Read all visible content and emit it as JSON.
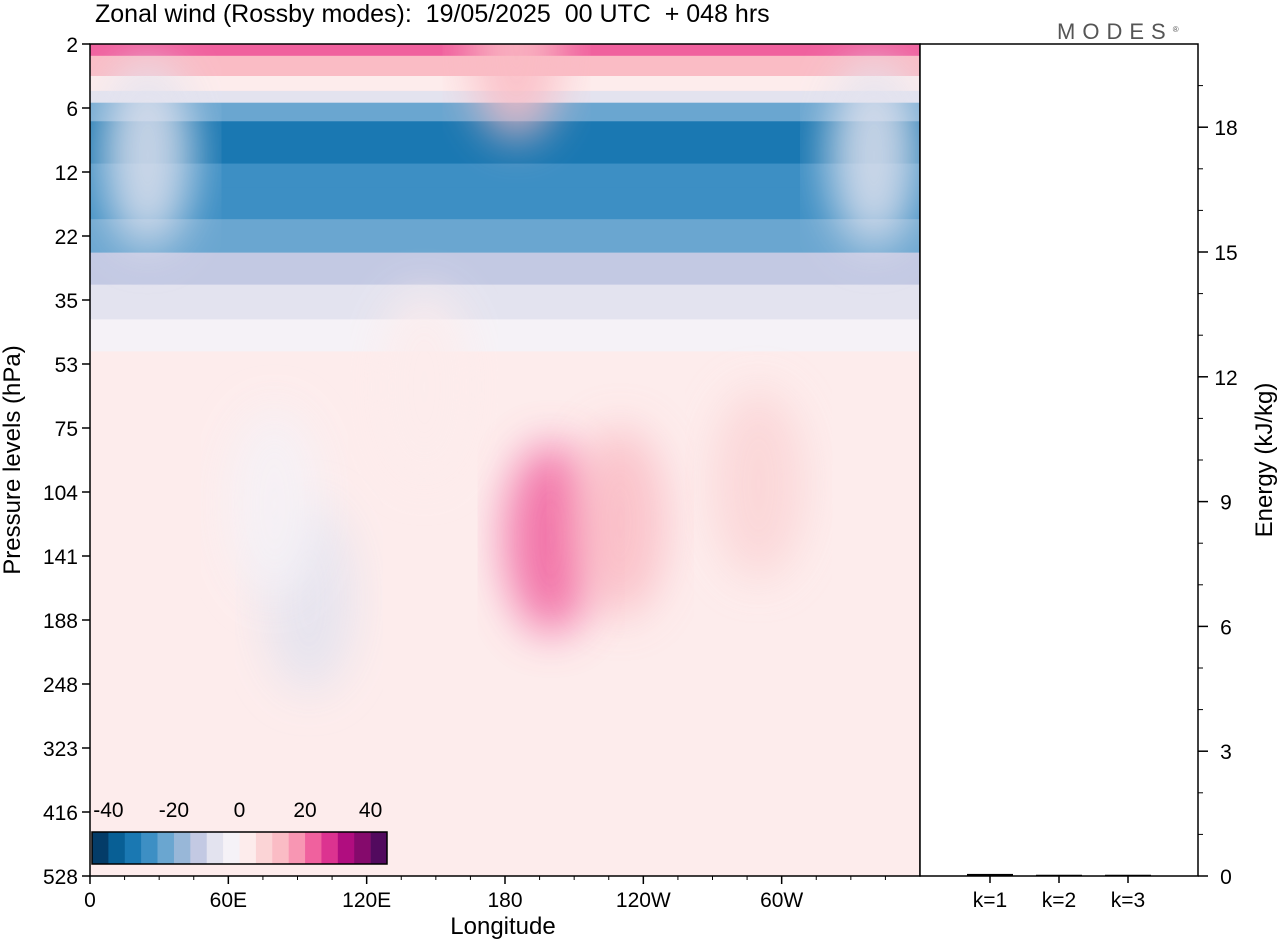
{
  "title": "Zonal wind (Rossby modes):  19/05/2025  00 UTC  + 048 hrs",
  "logo": "MODES",
  "colors": {
    "levels": [
      "#043c68",
      "#085f95",
      "#1a78b2",
      "#3d8fc4",
      "#6aa6d0",
      "#98b7d8",
      "#c3c9e3",
      "#e3e3ef",
      "#f5f2f7",
      "#fdecec",
      "#fbd4d6",
      "#fabcc5",
      "#f896b3",
      "#f0619e",
      "#dc3390",
      "#b00d7f",
      "#850a6c",
      "#520a5e"
    ],
    "frame": "#000000"
  },
  "chart_data": [
    {
      "type": "heatmap",
      "title": "Zonal wind (Rossby modes):  19/05/2025  00 UTC  + 048 hrs",
      "xlabel": "Longitude",
      "ylabel": "Pressure levels (hPa)",
      "x_ticks": [
        "0",
        "60E",
        "120E",
        "180",
        "120W",
        "60W"
      ],
      "y_ticks": [
        "2",
        "6",
        "12",
        "22",
        "35",
        "53",
        "75",
        "104",
        "141",
        "188",
        "248",
        "323",
        "416",
        "528"
      ],
      "colorbar_ticks": [
        "-40",
        "-20",
        "0",
        "20",
        "40"
      ],
      "colorbar_range": [
        -45,
        45
      ],
      "zonal_profile": [
        {
          "level": 2,
          "u": 21
        },
        {
          "level": 3,
          "u": 13
        },
        {
          "level": 4,
          "u": 4
        },
        {
          "level": 5,
          "u": -10
        },
        {
          "level": 6,
          "u": -22
        },
        {
          "level": 8,
          "u": -32
        },
        {
          "level": 10,
          "u": -34
        },
        {
          "level": 12,
          "u": -30
        },
        {
          "level": 16,
          "u": -26
        },
        {
          "level": 22,
          "u": -22
        },
        {
          "level": 28,
          "u": -15
        },
        {
          "level": 35,
          "u": -7
        },
        {
          "level": 45,
          "u": -1
        },
        {
          "level": 53,
          "u": 2
        },
        {
          "level": 75,
          "u": 3
        },
        {
          "level": 104,
          "u": 2
        },
        {
          "level": 141,
          "u": 2
        },
        {
          "level": 188,
          "u": 1
        },
        {
          "level": 248,
          "u": 1
        },
        {
          "level": 323,
          "u": 0
        },
        {
          "level": 416,
          "u": 0
        },
        {
          "level": 528,
          "u": 0
        }
      ],
      "anomalies": [
        {
          "lon": 200,
          "level": 130,
          "u": 23
        },
        {
          "lon": 230,
          "level": 120,
          "u": 14
        },
        {
          "lon": 290,
          "level": 100,
          "u": 9
        },
        {
          "lon": 95,
          "level": 170,
          "u": -9
        },
        {
          "lon": 80,
          "level": 110,
          "u": -4
        },
        {
          "lon": 25,
          "level": 10,
          "u": -9
        },
        {
          "lon": 340,
          "level": 10,
          "u": -7
        },
        {
          "lon": 185,
          "level": 2,
          "u": 10
        },
        {
          "lon": 145,
          "level": 60,
          "u": 3
        }
      ]
    },
    {
      "type": "bar",
      "ylabel": "Energy (kJ/kg)",
      "categories": [
        "k=1",
        "k=2",
        "k=3"
      ],
      "values": [
        0.05,
        0.03,
        0.03
      ],
      "ylim": [
        0,
        20
      ],
      "y_ticks": [
        "0",
        "3",
        "6",
        "9",
        "12",
        "15",
        "18"
      ]
    }
  ]
}
